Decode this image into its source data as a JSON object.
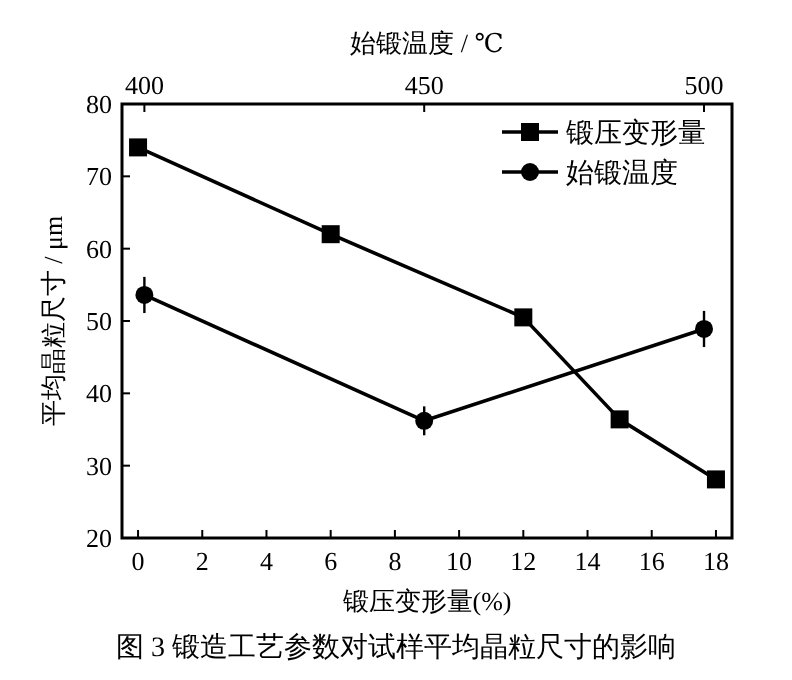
{
  "chart_data": {
    "type": "line",
    "xlabel": "锻压变形量(%)",
    "ylabel": "平均晶粒尺寸 / μm",
    "x2label": "始锻温度 / ℃",
    "annotations": [
      "图 3  锻造工艺参数对试样平均晶粒尺寸的影响"
    ],
    "xlim": [
      -0.5,
      18.5
    ],
    "xticks": [
      0,
      2,
      4,
      6,
      8,
      10,
      12,
      14,
      16,
      18
    ],
    "x2lim": [
      396,
      505
    ],
    "x2ticks": [
      400,
      450,
      500
    ],
    "ylim": [
      20,
      80
    ],
    "yticks": [
      20,
      30,
      40,
      50,
      60,
      70,
      80
    ],
    "legend": "top right",
    "grid": false,
    "line_style": "solid",
    "series": [
      {
        "name": "锻压变形量",
        "color": "#000000",
        "marker": "square",
        "x": [
          0,
          6,
          12,
          15,
          18
        ],
        "values": [
          74,
          62,
          50.5,
          36.4,
          28.1
        ]
      },
      {
        "name": "始锻温度",
        "color": "#000000",
        "marker": "circle",
        "axis": "x2",
        "x": [
          400,
          450,
          500
        ],
        "values": [
          53.6,
          36.2,
          48.9
        ],
        "errors": [
          2.5,
          2,
          2.5
        ]
      }
    ]
  }
}
